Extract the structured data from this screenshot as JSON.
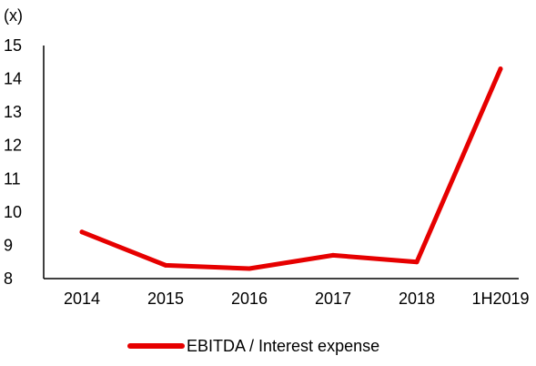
{
  "chart_data": {
    "type": "line",
    "ylabel": "(x)",
    "xlabel": "",
    "categories": [
      "2014",
      "2015",
      "2016",
      "2017",
      "2018",
      "1H2019"
    ],
    "series": [
      {
        "name": "EBITDA / Interest expense",
        "values": [
          9.4,
          8.4,
          8.3,
          8.7,
          8.5,
          14.3
        ],
        "color": "#e60000"
      }
    ],
    "ylim": [
      8,
      15
    ],
    "yticks": [
      "8",
      "9",
      "10",
      "11",
      "12",
      "13",
      "14",
      "15"
    ],
    "grid": false,
    "legend_position": "bottom"
  }
}
